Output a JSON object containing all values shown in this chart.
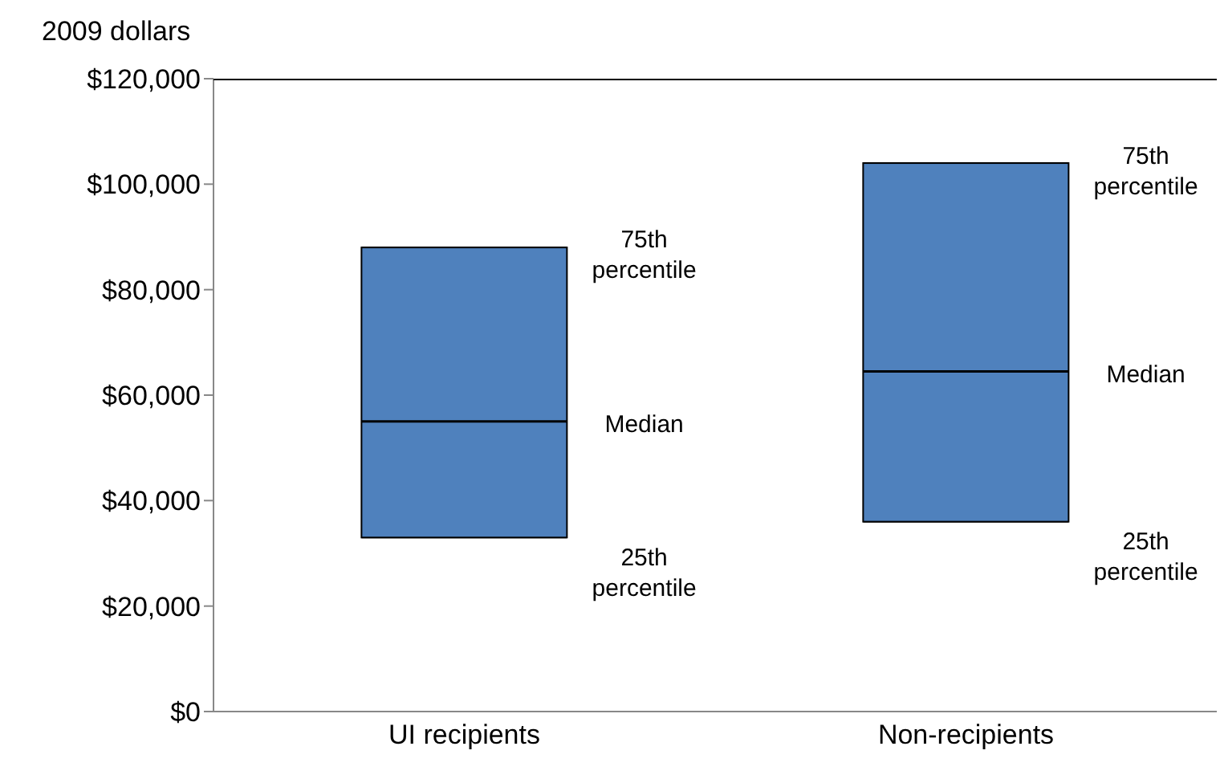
{
  "chart_data": {
    "type": "box",
    "ylabel": "2009 dollars",
    "categories": [
      "UI recipients",
      "Non-recipients"
    ],
    "color": "#4f81bd",
    "boxes": [
      {
        "low": 33000,
        "q1": 33000,
        "median": 55000,
        "q3": 88000,
        "high": 88000
      },
      {
        "low": 36000,
        "q1": 36000,
        "median": 64500,
        "q3": 104000,
        "high": 104000
      }
    ],
    "ylim": [
      0,
      120000
    ],
    "yticks": [
      {
        "value": 0,
        "label": "$0"
      },
      {
        "value": 20000,
        "label": "$20,000"
      },
      {
        "value": 40000,
        "label": "$40,000"
      },
      {
        "value": 60000,
        "label": "$60,000"
      },
      {
        "value": 80000,
        "label": "$80,000"
      },
      {
        "value": 100000,
        "label": "$100,000"
      },
      {
        "value": 120000,
        "label": "$120,000"
      }
    ],
    "annotations": [
      "75th percentile",
      "Median",
      "25th percentile",
      "75th percentile",
      "Median",
      "25th percentile"
    ]
  }
}
